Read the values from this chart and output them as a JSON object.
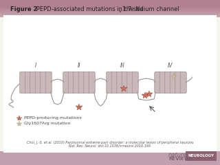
{
  "title_bold": "Figure 2",
  "title_normal": " PEPD-associated mutations in the Na",
  "title_sub": "v",
  "title_end": "1.7 sodium channel",
  "bg_top_color": "#b08090",
  "bg_main_color": "#f5f5f0",
  "bg_bottom_color": "#c0a0b0",
  "channel_color": "#c8b8b8",
  "channel_outline": "#a09090",
  "star_pepd_color": "#c87060",
  "star_gly_color": "#d0c0a0",
  "domain_labels": [
    "I",
    "II",
    "III",
    "IV"
  ],
  "legend_star1": "PEPD-producing mutations",
  "legend_star2": "Gly1607Arg mutation",
  "citation": "Choi, J.-S. et al. (2010) Paroxysmal extreme pain disorder: a molecular lesion of peripheral neurons",
  "citation2": "Nat. Rev. Neurol. doi:10.1038/nrneurol.2010.169",
  "nature_reviews_color": "#7a6070",
  "neurology_bg": "#8b6070",
  "neurology_text": "#ffffff"
}
